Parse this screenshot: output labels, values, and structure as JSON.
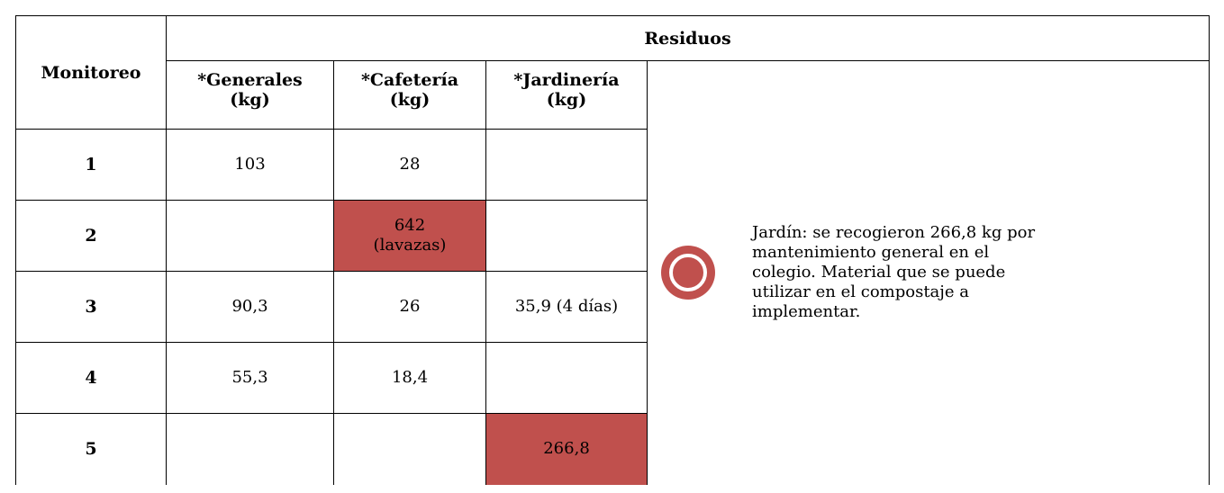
{
  "table": {
    "group_header": "Residuos",
    "row_header": "Monitoreo",
    "columns": [
      "*Generales\n(kg)",
      "*Cafetería\n(kg)",
      "*Jardinería\n(kg)"
    ],
    "rows": [
      {
        "label": "1",
        "cells": [
          "103",
          "28",
          null
        ]
      },
      {
        "label": "2",
        "cells": [
          null,
          "642\n(lavazas)",
          null
        ]
      },
      {
        "label": "3",
        "cells": [
          "90,3",
          "26",
          "35,9 (4 días)"
        ]
      },
      {
        "label": "4",
        "cells": [
          "55,3",
          "18,4",
          null
        ]
      },
      {
        "label": "5",
        "cells": [
          null,
          null,
          "266,8"
        ]
      }
    ],
    "highlight": {
      "color": "#c0504d",
      "cells": [
        "1.1",
        "4.2"
      ]
    },
    "note": "Jardín: se recogieron 266,8 kg por mantenimiento general en el colegio. Material que se puede utilizar en el compostaje a implementar."
  }
}
